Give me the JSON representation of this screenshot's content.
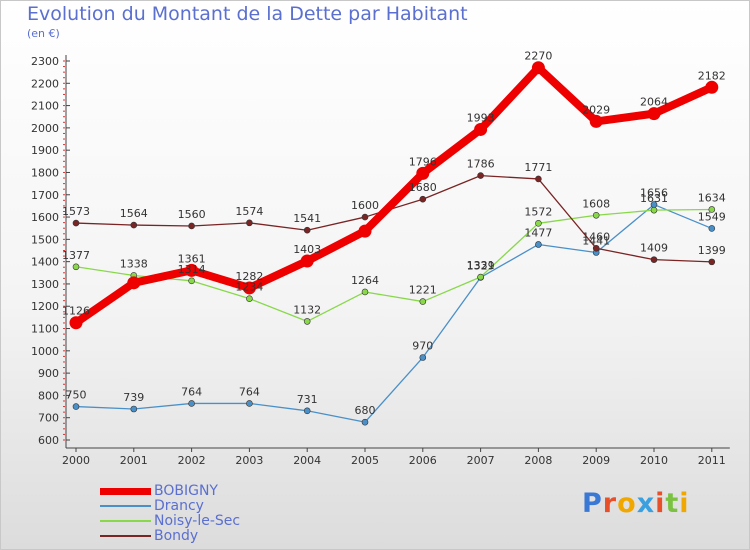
{
  "header": {
    "title": "Evolution du Montant de la Dette par Habitant",
    "unit": "(en €)"
  },
  "branding": {
    "logo_text": "Proxiti"
  },
  "chart_data": {
    "type": "line",
    "title": "Evolution du Montant de la Dette par Habitant",
    "ylabel": "(en €)",
    "xlabel": "",
    "ylim": [
      600,
      2300
    ],
    "y_ticks": [
      600,
      700,
      800,
      900,
      1000,
      1100,
      1200,
      1300,
      1400,
      1500,
      1600,
      1700,
      1800,
      1900,
      2000,
      2100,
      2200,
      2300
    ],
    "categories": [
      "2000",
      "2001",
      "2002",
      "2003",
      "2004",
      "2005",
      "2006",
      "2007",
      "2008",
      "2009",
      "2010",
      "2011"
    ],
    "grid": false,
    "legend": "bottom-left",
    "series": [
      {
        "name": "BOBIGNY",
        "color": "#ee0000",
        "emphasis": true,
        "values": [
          1126,
          1305,
          1361,
          1282,
          1403,
          1537,
          1796,
          1993,
          2270,
          2029,
          2064,
          2182
        ],
        "labels": [
          "1126",
          "",
          "1361",
          "1282",
          "1403",
          "",
          "1796",
          "1993",
          "2270",
          "2029",
          "2064",
          "2182"
        ]
      },
      {
        "name": "Drancy",
        "color": "#4a90c8",
        "emphasis": false,
        "values": [
          750,
          739,
          764,
          764,
          731,
          680,
          970,
          1329,
          1477,
          1441,
          1656,
          1549
        ],
        "labels": [
          "750",
          "739",
          "764",
          "764",
          "731",
          "680",
          "970",
          "1329",
          "1477",
          "1441",
          "1656",
          "1549"
        ]
      },
      {
        "name": "Noisy-le-Sec",
        "color": "#88d84a",
        "emphasis": false,
        "values": [
          1377,
          1338,
          1314,
          1234,
          1132,
          1264,
          1221,
          1331,
          1572,
          1608,
          1631,
          1634
        ],
        "labels": [
          "1377",
          "1338",
          "1314",
          "1234",
          "1132",
          "1264",
          "1221",
          "1331",
          "1572",
          "1608",
          "1631",
          "1634"
        ]
      },
      {
        "name": "Bondy",
        "color": "#7a2424",
        "emphasis": false,
        "values": [
          1573,
          1564,
          1560,
          1574,
          1541,
          1600,
          1680,
          1786,
          1771,
          1460,
          1409,
          1399
        ],
        "labels": [
          "1573",
          "1564",
          "1560",
          "1574",
          "1541",
          "1600",
          "1680",
          "1786",
          "1771",
          "1460",
          "1409",
          "1399"
        ]
      }
    ]
  }
}
